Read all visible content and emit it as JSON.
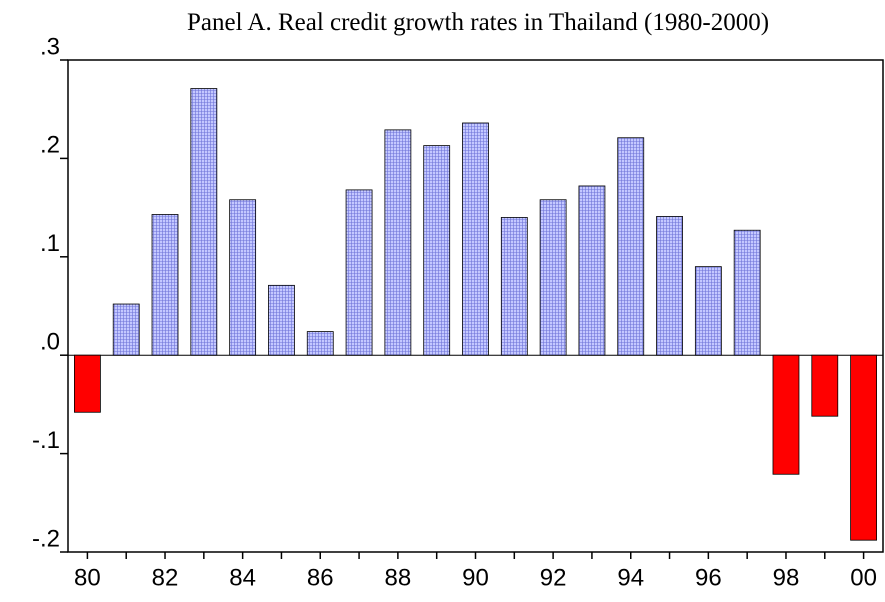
{
  "chart_data": {
    "type": "bar",
    "title": "Panel A. Real credit growth rates in Thailand (1980-2000)",
    "categories": [
      "80",
      null,
      "82",
      null,
      "84",
      null,
      "86",
      null,
      "88",
      null,
      "90",
      null,
      "92",
      null,
      "94",
      null,
      "96",
      null,
      "98",
      null,
      "00"
    ],
    "values": [
      -0.058,
      0.052,
      0.143,
      0.271,
      0.158,
      0.071,
      0.024,
      0.168,
      0.229,
      0.213,
      0.236,
      0.14,
      0.158,
      0.172,
      0.221,
      0.141,
      0.09,
      0.127,
      -0.121,
      -0.062,
      -0.188
    ],
    "color": "#b8bcf8",
    "negative_color": "#ff0000",
    "ylim": [
      -0.2,
      0.3
    ],
    "yticks": [
      {
        "value": -0.2,
        "label": "-.2"
      },
      {
        "value": -0.1,
        "label": "-.1"
      },
      {
        "value": 0,
        "label": ".0"
      },
      {
        "value": 0.1,
        "label": ".1"
      },
      {
        "value": 0.2,
        "label": ".2"
      },
      {
        "value": 0.3,
        "label": ".3"
      }
    ]
  }
}
